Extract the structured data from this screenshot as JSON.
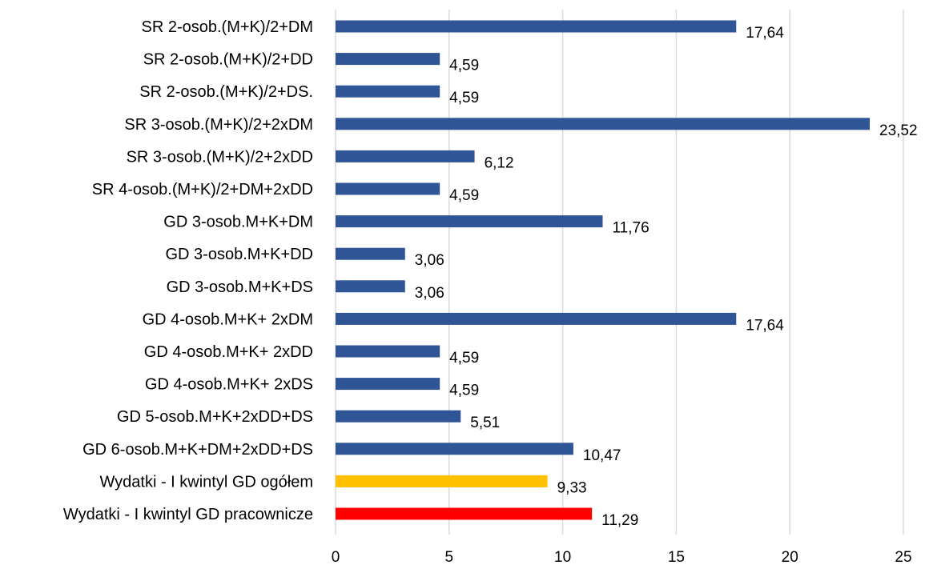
{
  "chart_data": {
    "type": "bar",
    "orientation": "horizontal",
    "title": "",
    "xlabel": "",
    "ylabel": "",
    "xlim": [
      0,
      25
    ],
    "ticks": [
      "0",
      "5",
      "10",
      "15",
      "20",
      "25"
    ],
    "grid": true,
    "categories": [
      "SR 2-osob.(M+K)/2+DM",
      "SR 2-osob.(M+K)/2+DD",
      "SR 2-osob.(M+K)/2+DS.",
      "SR 3-osob.(M+K)/2+2xDM",
      "SR 3-osob.(M+K)/2+2xDD",
      "SR 4-osob.(M+K)/2+DM+2xDD",
      "GD 3-osob.M+K+DM",
      "GD 3-osob.M+K+DD",
      "GD 3-osob.M+K+DS",
      "GD 4-osob.M+K+ 2xDM",
      "GD 4-osob.M+K+ 2xDD",
      "GD 4-osob.M+K+ 2xDS",
      "GD 5-osob.M+K+2xDD+DS",
      "GD 6-osob.M+K+DM+2xDD+DS",
      "Wydatki - I kwintyl GD ogółem",
      "Wydatki - I kwintyl GD pracownicze"
    ],
    "values": [
      17.64,
      4.59,
      4.59,
      23.52,
      6.12,
      4.59,
      11.76,
      3.06,
      3.06,
      17.64,
      4.59,
      4.59,
      5.51,
      10.47,
      9.33,
      11.29
    ],
    "value_labels": [
      "17,64",
      "4,59",
      "4,59",
      "23,52",
      "6,12",
      "4,59",
      "11,76",
      "3,06",
      "3,06",
      "17,64",
      "4,59",
      "4,59",
      "5,51",
      "10,47",
      "9,33",
      "11,29"
    ],
    "colors": [
      "#2f5597",
      "#2f5597",
      "#2f5597",
      "#2f5597",
      "#2f5597",
      "#2f5597",
      "#2f5597",
      "#2f5597",
      "#2f5597",
      "#2f5597",
      "#2f5597",
      "#2f5597",
      "#2f5597",
      "#2f5597",
      "#ffc000",
      "#ff0000"
    ]
  }
}
